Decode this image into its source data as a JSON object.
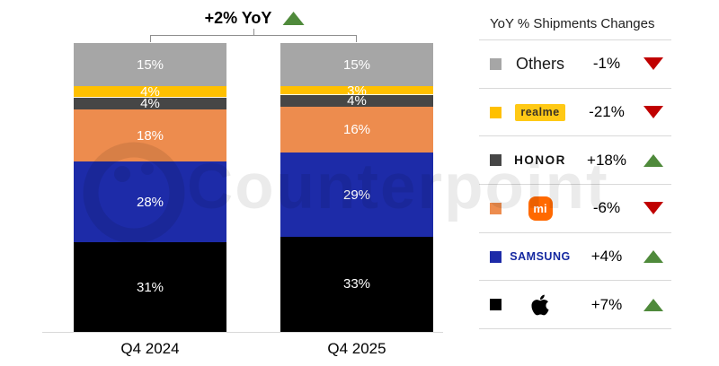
{
  "annotation": {
    "label": "+2% YoY",
    "direction": "up"
  },
  "chart_data": {
    "type": "bar",
    "stacked": true,
    "categories": [
      "Q4 2024",
      "Q4 2025"
    ],
    "unit": "%",
    "ylim": [
      0,
      100
    ],
    "legend_position": "right",
    "total_change_label": "+2% YoY",
    "series": [
      {
        "name": "Apple",
        "color": "#000000",
        "values": [
          31,
          33
        ]
      },
      {
        "name": "Samsung",
        "color": "#1d2ba8",
        "values": [
          28,
          29
        ]
      },
      {
        "name": "Xiaomi",
        "color": "#ed8c4e",
        "values": [
          18,
          16
        ]
      },
      {
        "name": "HONOR",
        "color": "#464646",
        "values": [
          4,
          4
        ]
      },
      {
        "name": "realme",
        "color": "#ffc000",
        "values": [
          4,
          3
        ]
      },
      {
        "name": "Others",
        "color": "#a6a6a6",
        "values": [
          15,
          15
        ]
      }
    ]
  },
  "legend": {
    "title": "YoY % Shipments Changes",
    "rows": [
      {
        "id": "others",
        "label": "Others",
        "logo": "plain-text",
        "swatch": "#a6a6a6",
        "change": "-1%",
        "direction": "down"
      },
      {
        "id": "realme",
        "label": "realme",
        "logo": "realme-badge",
        "swatch": "#ffc000",
        "change": "-21%",
        "direction": "down"
      },
      {
        "id": "honor",
        "label": "HONOR",
        "logo": "honor-wordmark",
        "swatch": "#464646",
        "change": "+18%",
        "direction": "up"
      },
      {
        "id": "xiaomi",
        "label": "mi",
        "logo": "mi-app-icon",
        "swatch": "#ed8c4e",
        "change": "-6%",
        "direction": "down"
      },
      {
        "id": "samsung",
        "label": "SAMSUNG",
        "logo": "samsung-wordmark",
        "swatch": "#1d2ba8",
        "change": "+4%",
        "direction": "up"
      },
      {
        "id": "apple",
        "label": "",
        "logo": "apple-glyph",
        "swatch": "#000000",
        "change": "+7%",
        "direction": "up"
      }
    ]
  },
  "colors": {
    "up": "#4f8a3b",
    "down": "#c00000",
    "axis": "#d9d9d9",
    "separator": "#d9d9d9",
    "bracket": "#8f8f8f",
    "bar_label": "#ffffff"
  },
  "watermark": {
    "text": "Counterpoint"
  }
}
